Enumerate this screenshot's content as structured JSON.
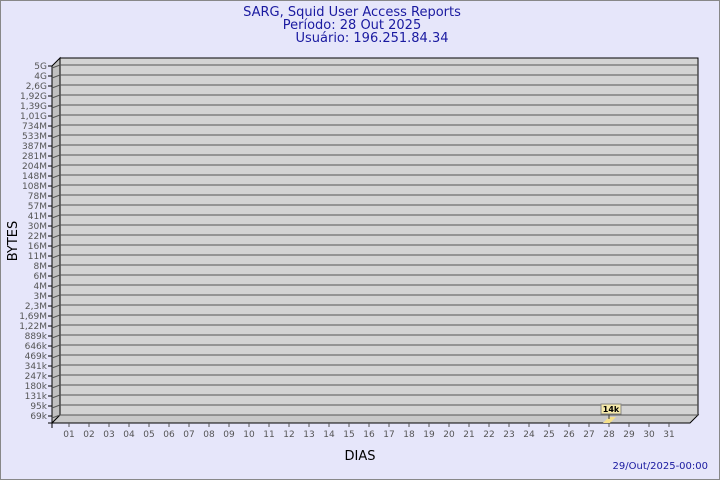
{
  "header": {
    "title": "SARG, Squid User Access Reports",
    "period": "Período: 28 Out 2025",
    "user": "Usuário: 196.251.84.34"
  },
  "footer": {
    "generated": "29/Out/2025-00:00"
  },
  "colors": {
    "background": "#e6e6fa",
    "title": "#1a1aa0",
    "plot": "#d3d3d3",
    "bar": "#f5e08a"
  },
  "chart_data": {
    "type": "bar",
    "xlabel": "DIAS",
    "ylabel": "BYTES",
    "grid": true,
    "y_scale": "log",
    "y_tick_labels": [
      "5G",
      "4G",
      "2,6G",
      "1,92G",
      "1,39G",
      "1,01G",
      "734M",
      "533M",
      "387M",
      "281M",
      "204M",
      "148M",
      "108M",
      "78M",
      "57M",
      "41M",
      "30M",
      "22M",
      "16M",
      "11M",
      "8M",
      "6M",
      "4M",
      "3M",
      "2,3M",
      "1,69M",
      "1,22M",
      "889k",
      "646k",
      "469k",
      "341k",
      "247k",
      "180k",
      "131k",
      "95k",
      "69k"
    ],
    "categories": [
      "01",
      "02",
      "03",
      "04",
      "05",
      "06",
      "07",
      "08",
      "09",
      "10",
      "11",
      "12",
      "13",
      "14",
      "15",
      "16",
      "17",
      "18",
      "19",
      "20",
      "21",
      "22",
      "23",
      "24",
      "25",
      "26",
      "27",
      "28",
      "29",
      "30",
      "31"
    ],
    "bars": [
      {
        "day": "28",
        "value": 14000,
        "label": "14k"
      }
    ]
  }
}
